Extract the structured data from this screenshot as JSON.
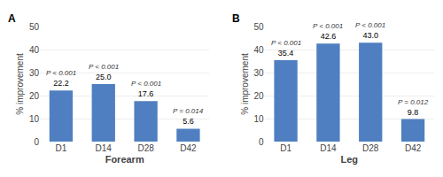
{
  "chart_data": [
    {
      "type": "bar",
      "title": "A",
      "categories": [
        "D1",
        "D14",
        "D28",
        "D42"
      ],
      "values": [
        22.2,
        25.0,
        17.6,
        5.6
      ],
      "value_labels": [
        "22.2",
        "25.0",
        "17.6",
        "5.6"
      ],
      "annotations": [
        {
          "x": "D1",
          "text": "P < 0.001"
        },
        {
          "x": "D14",
          "text": "P < 0.001"
        },
        {
          "x": "D28",
          "text": "P < 0.001"
        },
        {
          "x": "D42",
          "text": "P = 0.014"
        }
      ],
      "xlabel": "Forearm",
      "ylabel": "% improvement",
      "ylim": [
        0,
        50
      ],
      "yticks": [
        0,
        10,
        20,
        30,
        40,
        50
      ],
      "color": "#4f7fc0",
      "grid": true,
      "data_labels": true
    },
    {
      "type": "bar",
      "title": "B",
      "categories": [
        "D1",
        "D14",
        "D28",
        "D42"
      ],
      "values": [
        35.4,
        42.6,
        43.0,
        9.8
      ],
      "value_labels": [
        "35.4",
        "42.6",
        "43.0",
        "9.8"
      ],
      "annotations": [
        {
          "x": "D1",
          "text": "P < 0.001"
        },
        {
          "x": "D14",
          "text": "P < 0.001"
        },
        {
          "x": "D28",
          "text": "P < 0.001"
        },
        {
          "x": "D42",
          "text": "P = 0.012"
        }
      ],
      "xlabel": "Leg",
      "ylabel": "% improvement",
      "ylim": [
        0,
        50
      ],
      "yticks": [
        0,
        10,
        20,
        30,
        40,
        50
      ],
      "color": "#4f7fc0",
      "grid": true,
      "data_labels": true
    }
  ]
}
